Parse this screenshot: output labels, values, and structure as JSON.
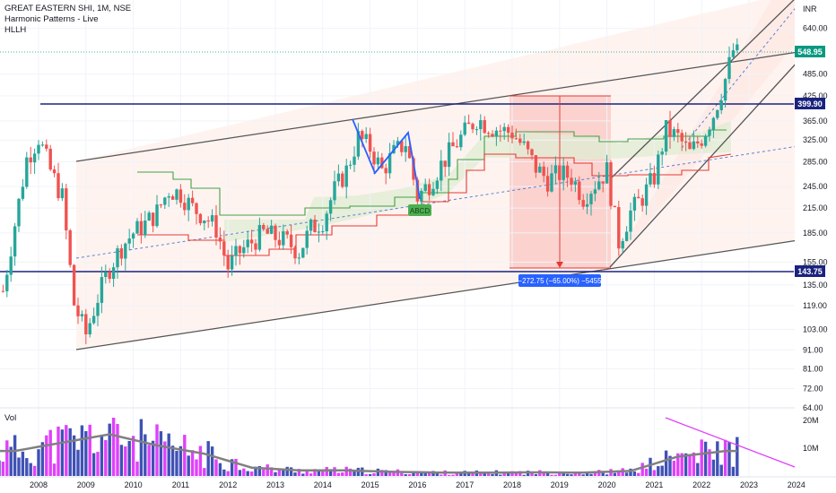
{
  "header": {
    "symbol_line": "GREAT EASTERN SHI, 1M, NSE",
    "indicator_1": "Harmonic Patterns - Live",
    "indicator_2": "HLLH",
    "currency": "INR"
  },
  "volume_pane": {
    "label": "Vol",
    "ticks": [
      "20M",
      "10M"
    ],
    "tick_values": [
      20,
      10
    ]
  },
  "colors": {
    "up": "#26a69a",
    "down": "#ef5350",
    "resistance_line": "#1a237e",
    "price_tag": "#089981",
    "measure_bg": "#2962ff",
    "abcd_label": "#4caf50",
    "abcd_pattern": "#2962ff",
    "channel": "#4d4d4d",
    "volume_up": "#3f51b5",
    "volume_down": "#e040fb",
    "volume_ma": "#808080",
    "trend": "#e040fb"
  },
  "chart_data": {
    "type": "candlestick",
    "title": "GREAT EASTERN SHI, 1M, NSE",
    "y_scale": "log",
    "ylim": [
      64,
      760
    ],
    "y_ticks": [
      "640.00",
      "485.00",
      "425.00",
      "365.00",
      "325.00",
      "285.00",
      "245.00",
      "215.00",
      "185.00",
      "155.00",
      "135.00",
      "119.00",
      "103.00",
      "91.00",
      "81.00",
      "72.00",
      "64.00"
    ],
    "x_ticks": [
      "2008",
      "2009",
      "2010",
      "2011",
      "2012",
      "2013",
      "2014",
      "2015",
      "2016",
      "2017",
      "2018",
      "2019",
      "2020",
      "2021",
      "2022",
      "2023",
      "2024"
    ],
    "last_price": "548.95",
    "horizontal_levels": [
      {
        "value": "399.90"
      },
      {
        "value": "143.75"
      }
    ],
    "measure_label": "−272.75 (−65.00%) −5455",
    "pattern_label": "ABCD",
    "price_path": [
      [
        "2007-04",
        130
      ],
      [
        "2007-07",
        195
      ],
      [
        "2007-10",
        290
      ],
      [
        "2008-01",
        330
      ],
      [
        "2008-04",
        270
      ],
      [
        "2008-07",
        230
      ],
      [
        "2008-10",
        120
      ],
      [
        "2009-01",
        100
      ],
      [
        "2009-04",
        125
      ],
      [
        "2009-07",
        150
      ],
      [
        "2009-10",
        170
      ],
      [
        "2010-01",
        185
      ],
      [
        "2010-04",
        195
      ],
      [
        "2010-07",
        210
      ],
      [
        "2010-10",
        240
      ],
      [
        "2011-01",
        235
      ],
      [
        "2011-04",
        215
      ],
      [
        "2011-07",
        205
      ],
      [
        "2011-10",
        190
      ],
      [
        "2012-01",
        150
      ],
      [
        "2012-04",
        165
      ],
      [
        "2012-07",
        175
      ],
      [
        "2012-10",
        185
      ],
      [
        "2013-01",
        180
      ],
      [
        "2013-04",
        175
      ],
      [
        "2013-07",
        165
      ],
      [
        "2013-10",
        190
      ],
      [
        "2014-01",
        200
      ],
      [
        "2014-04",
        240
      ],
      [
        "2014-07",
        270
      ],
      [
        "2014-10",
        330
      ],
      [
        "2015-01",
        310
      ],
      [
        "2015-04",
        270
      ],
      [
        "2015-07",
        300
      ],
      [
        "2015-10",
        320
      ],
      [
        "2016-01",
        230
      ],
      [
        "2016-04",
        250
      ],
      [
        "2016-07",
        280
      ],
      [
        "2016-10",
        310
      ],
      [
        "2017-01",
        340
      ],
      [
        "2017-04",
        370
      ],
      [
        "2017-07",
        355
      ],
      [
        "2017-10",
        345
      ],
      [
        "2018-01",
        340
      ],
      [
        "2018-04",
        310
      ],
      [
        "2018-07",
        275
      ],
      [
        "2018-10",
        255
      ],
      [
        "2019-01",
        265
      ],
      [
        "2019-04",
        260
      ],
      [
        "2019-07",
        230
      ],
      [
        "2019-10",
        250
      ],
      [
        "2020-01",
        270
      ],
      [
        "2020-04",
        175
      ],
      [
        "2020-07",
        210
      ],
      [
        "2020-10",
        230
      ],
      [
        "2021-01",
        260
      ],
      [
        "2021-04",
        345
      ],
      [
        "2021-07",
        330
      ],
      [
        "2021-10",
        300
      ],
      [
        "2022-01",
        330
      ],
      [
        "2022-04",
        380
      ],
      [
        "2022-07",
        470
      ],
      [
        "2022-09",
        560
      ],
      [
        "2022-10",
        548.95
      ]
    ],
    "volume_millions": [
      [
        "2007",
        9
      ],
      [
        "2008",
        12
      ],
      [
        "2009",
        15
      ],
      [
        "2010",
        11
      ],
      [
        "2011",
        8
      ],
      [
        "2012",
        3
      ],
      [
        "2013",
        2
      ],
      [
        "2014",
        2
      ],
      [
        "2015",
        1.5
      ],
      [
        "2016",
        1.2
      ],
      [
        "2017",
        1.2
      ],
      [
        "2018",
        1.3
      ],
      [
        "2019",
        1.2
      ],
      [
        "2020",
        1.8
      ],
      [
        "2021",
        7
      ],
      [
        "2022",
        9
      ]
    ]
  }
}
